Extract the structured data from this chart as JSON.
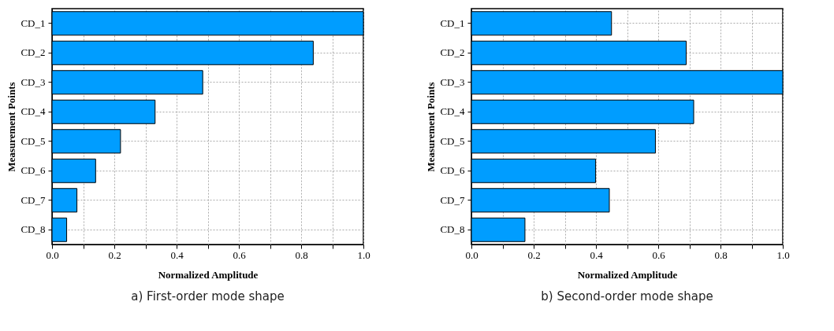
{
  "chart_data": [
    {
      "type": "bar",
      "orientation": "horizontal",
      "title": "a) First-order mode shape",
      "xlabel": "Normalized Amplitude",
      "ylabel": "Measurement Points",
      "categories": [
        "CD_1",
        "CD_2",
        "CD_3",
        "CD_4",
        "CD_5",
        "CD_6",
        "CD_7",
        "CD_8"
      ],
      "series": [
        {
          "color": "#009dff",
          "values": [
            1.0,
            0.839,
            0.484,
            0.331,
            0.22,
            0.14,
            0.08,
            0.047
          ]
        }
      ],
      "xlim": [
        0,
        1
      ],
      "xticks": [
        {
          "value": 0,
          "label": "0.0"
        },
        {
          "value": 0.1,
          "label": null
        },
        {
          "value": 0.2,
          "label": "0.2"
        },
        {
          "value": 0.3,
          "label": null
        },
        {
          "value": 0.4,
          "label": "0.4"
        },
        {
          "value": 0.5,
          "label": null
        },
        {
          "value": 0.6,
          "label": "0.6"
        },
        {
          "value": 0.7,
          "label": null
        },
        {
          "value": 0.8,
          "label": "0.8"
        },
        {
          "value": 0.9,
          "label": null
        },
        {
          "value": 1,
          "label": "1.0"
        }
      ],
      "grid": true
    },
    {
      "type": "bar",
      "orientation": "horizontal",
      "title": "b) Second-order mode shape",
      "xlabel": "Normalized Amplitude",
      "ylabel": "Measurement Points",
      "categories": [
        "CD_1",
        "CD_2",
        "CD_3",
        "CD_4",
        "CD_5",
        "CD_6",
        "CD_7",
        "CD_8"
      ],
      "series": [
        {
          "color": "#009dff",
          "values": [
            0.45,
            0.69,
            1.0,
            0.714,
            0.591,
            0.399,
            0.443,
            0.172
          ]
        }
      ],
      "xlim": [
        0,
        1
      ],
      "xticks": [
        {
          "value": 0,
          "label": "0.0"
        },
        {
          "value": 0.1,
          "label": null
        },
        {
          "value": 0.2,
          "label": "0.2"
        },
        {
          "value": 0.3,
          "label": null
        },
        {
          "value": 0.4,
          "label": "0.4"
        },
        {
          "value": 0.5,
          "label": null
        },
        {
          "value": 0.6,
          "label": "0.6"
        },
        {
          "value": 0.7,
          "label": null
        },
        {
          "value": 0.8,
          "label": "0.8"
        },
        {
          "value": 0.9,
          "label": null
        },
        {
          "value": 1,
          "label": "1.0"
        }
      ],
      "grid": true
    }
  ]
}
